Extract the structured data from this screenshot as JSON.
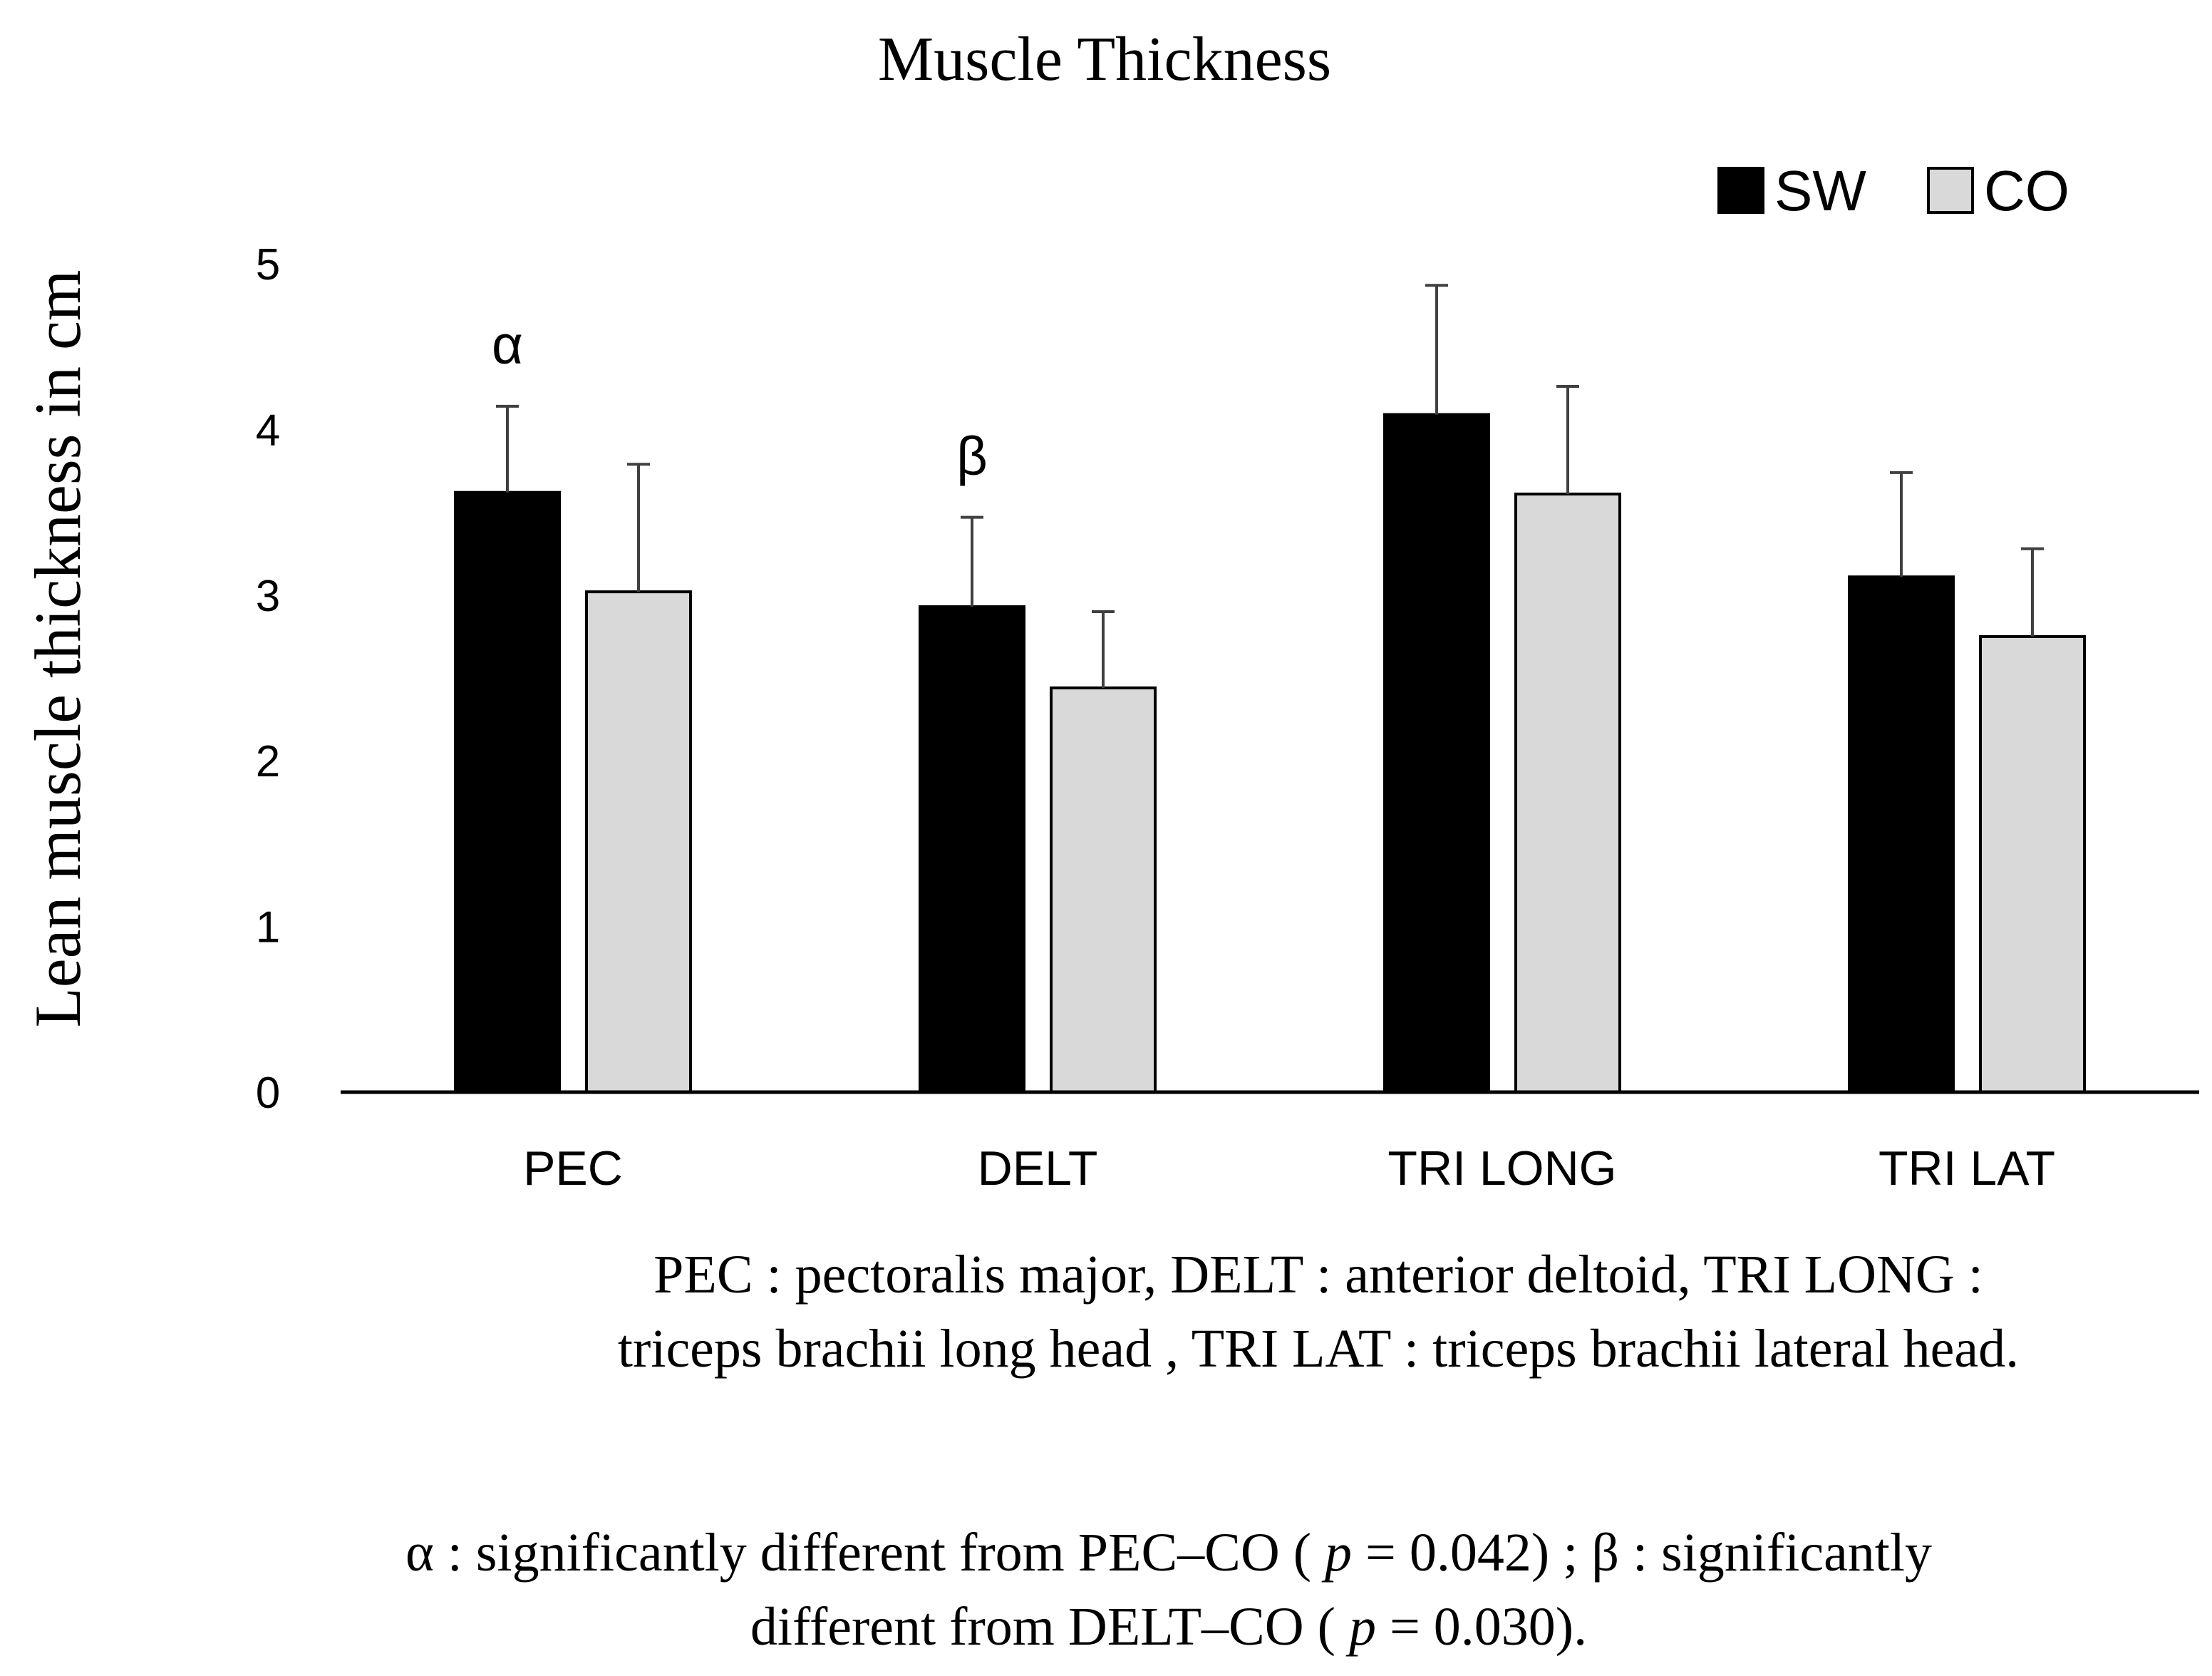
{
  "chart_data": {
    "type": "bar",
    "title": "Muscle Thickness",
    "xlabel": "",
    "ylabel": "Lean muscle thickness in cm",
    "ylim": [
      0,
      5
    ],
    "yticks": [
      0,
      1,
      2,
      3,
      4,
      5
    ],
    "categories": [
      "PEC",
      "DELT",
      "TRI LONG",
      "TRI LAT"
    ],
    "series": [
      {
        "name": "SW",
        "color": "#000000",
        "values": [
          3.62,
          2.93,
          4.09,
          3.11
        ],
        "errors": [
          0.52,
          0.54,
          0.78,
          0.63
        ]
      },
      {
        "name": "CO",
        "color": "#d9d9d9",
        "values": [
          3.02,
          2.44,
          3.61,
          2.75
        ],
        "errors": [
          0.77,
          0.46,
          0.65,
          0.53
        ]
      }
    ],
    "annotations": [
      {
        "text": "α",
        "category": "PEC",
        "series": "SW"
      },
      {
        "text": "β",
        "category": "DELT",
        "series": "SW"
      }
    ],
    "legend_position": "top-right",
    "grid": false
  },
  "footnotes": {
    "abbreviations": {
      "line1": "PEC : pectoralis major, DELT : anterior deltoid, TRI LONG :",
      "line2": "triceps brachii long head , TRI LAT : triceps brachii lateral head."
    },
    "significance": {
      "line1_pre": "α : significantly  different from PEC–CO ( ",
      "p_symbol": "p",
      "line1_post": " = 0.042) ; β : significantly",
      "line2_pre": "different from DELT–CO ( ",
      "p_symbol2": "p",
      "line2_post": " = 0.030)."
    }
  }
}
